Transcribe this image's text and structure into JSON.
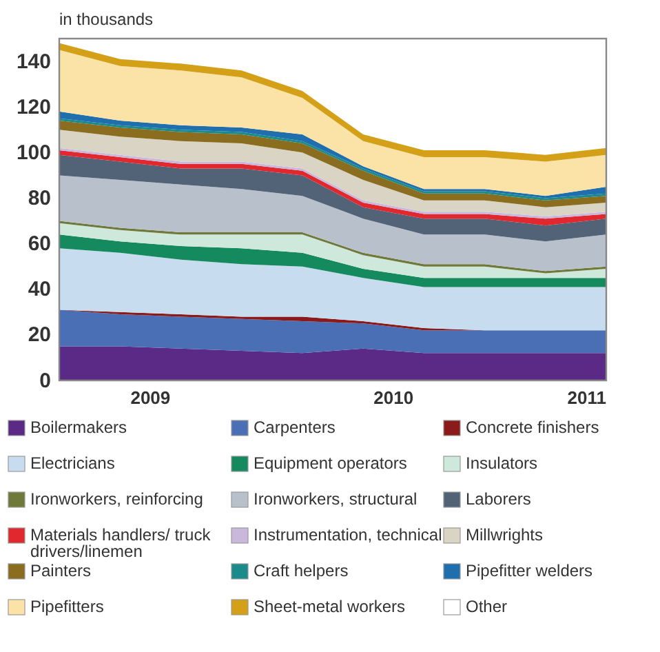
{
  "chart_data": {
    "type": "area",
    "stacked": true,
    "ylabel": "in thousands",
    "x": [
      2008.5,
      2008.75,
      2009.0,
      2009.25,
      2009.5,
      2009.75,
      2010.0,
      2010.25,
      2010.5,
      2010.75
    ],
    "xlim": [
      2008.5,
      2010.75
    ],
    "xticks": [
      {
        "value": 2008.875,
        "label": "2009"
      },
      {
        "value": 2009.875,
        "label": "2010"
      },
      {
        "value": 2010.67,
        "label": "2011"
      }
    ],
    "ylim": [
      0,
      150
    ],
    "yticks": [
      0,
      20,
      40,
      60,
      80,
      100,
      120,
      140
    ],
    "grid": false,
    "legend": "bottom",
    "series": [
      {
        "name": "Boilermakers",
        "color": "#5b2a86",
        "values": [
          15,
          15,
          14,
          13,
          12,
          14,
          12,
          12,
          12,
          12
        ]
      },
      {
        "name": "Carpenters",
        "color": "#4a6fb5",
        "values": [
          16,
          14,
          14,
          14,
          14,
          11,
          10,
          10,
          10,
          10
        ]
      },
      {
        "name": "Concrete finishers",
        "color": "#8b1a1a",
        "values": [
          0,
          1,
          1,
          1,
          2,
          1,
          1,
          0,
          0,
          0
        ]
      },
      {
        "name": "Electricians",
        "color": "#c8dcef",
        "values": [
          27,
          26,
          24,
          23,
          22,
          19,
          18,
          19,
          19,
          19
        ]
      },
      {
        "name": "Equipment operators",
        "color": "#168a5f",
        "values": [
          6,
          5,
          6,
          7,
          6,
          4,
          4,
          4,
          4,
          4
        ]
      },
      {
        "name": "Insulators",
        "color": "#cfe8dc",
        "values": [
          5,
          5,
          5,
          6,
          8,
          6,
          5,
          5,
          2,
          4
        ]
      },
      {
        "name": "Ironworkers, reinforcing",
        "color": "#6f7a3a",
        "values": [
          1,
          1,
          1,
          1,
          1,
          1,
          1,
          1,
          1,
          1
        ]
      },
      {
        "name": "Ironworkers, structural",
        "color": "#b8c0cc",
        "values": [
          20,
          21,
          21,
          19,
          16,
          15,
          13,
          13,
          13,
          14
        ]
      },
      {
        "name": "Laborers",
        "color": "#526378",
        "values": [
          9,
          8,
          7,
          9,
          9,
          5,
          7,
          7,
          7,
          7
        ]
      },
      {
        "name": "Materials handlers/ truck drivers/linemen",
        "color": "#e0282e",
        "values": [
          2,
          2,
          2,
          2,
          2,
          2,
          2,
          2,
          3,
          2
        ]
      },
      {
        "name": "Instrumentation, technical",
        "color": "#c9b8dc",
        "values": [
          1,
          1,
          1,
          1,
          1,
          1,
          1,
          1,
          1,
          1
        ]
      },
      {
        "name": "Millwrights",
        "color": "#d9d4c4",
        "values": [
          8,
          8,
          9,
          8,
          7,
          9,
          5,
          5,
          4,
          4
        ]
      },
      {
        "name": "Painters",
        "color": "#8a6d1e",
        "values": [
          4,
          4,
          4,
          4,
          4,
          4,
          3,
          3,
          3,
          3
        ]
      },
      {
        "name": "Craft helpers",
        "color": "#1a8a8a",
        "values": [
          1,
          1,
          1,
          1,
          1,
          1,
          1,
          1,
          1,
          1
        ]
      },
      {
        "name": "Pipefitter welders",
        "color": "#1f6fae",
        "values": [
          3,
          2,
          2,
          2,
          3,
          1,
          1,
          1,
          1,
          3
        ]
      },
      {
        "name": "Pipefitters",
        "color": "#fbe3a8",
        "values": [
          27,
          24,
          24,
          22,
          16,
          11,
          14,
          14,
          15,
          14
        ]
      },
      {
        "name": "Sheet-metal workers",
        "color": "#d4a017",
        "values": [
          3,
          3,
          3,
          3,
          3,
          3,
          3,
          3,
          3,
          3
        ]
      },
      {
        "name": "Other",
        "color": "#ffffff",
        "values": [
          null,
          null,
          null,
          null,
          null,
          null,
          null,
          null,
          null,
          null
        ]
      }
    ]
  }
}
